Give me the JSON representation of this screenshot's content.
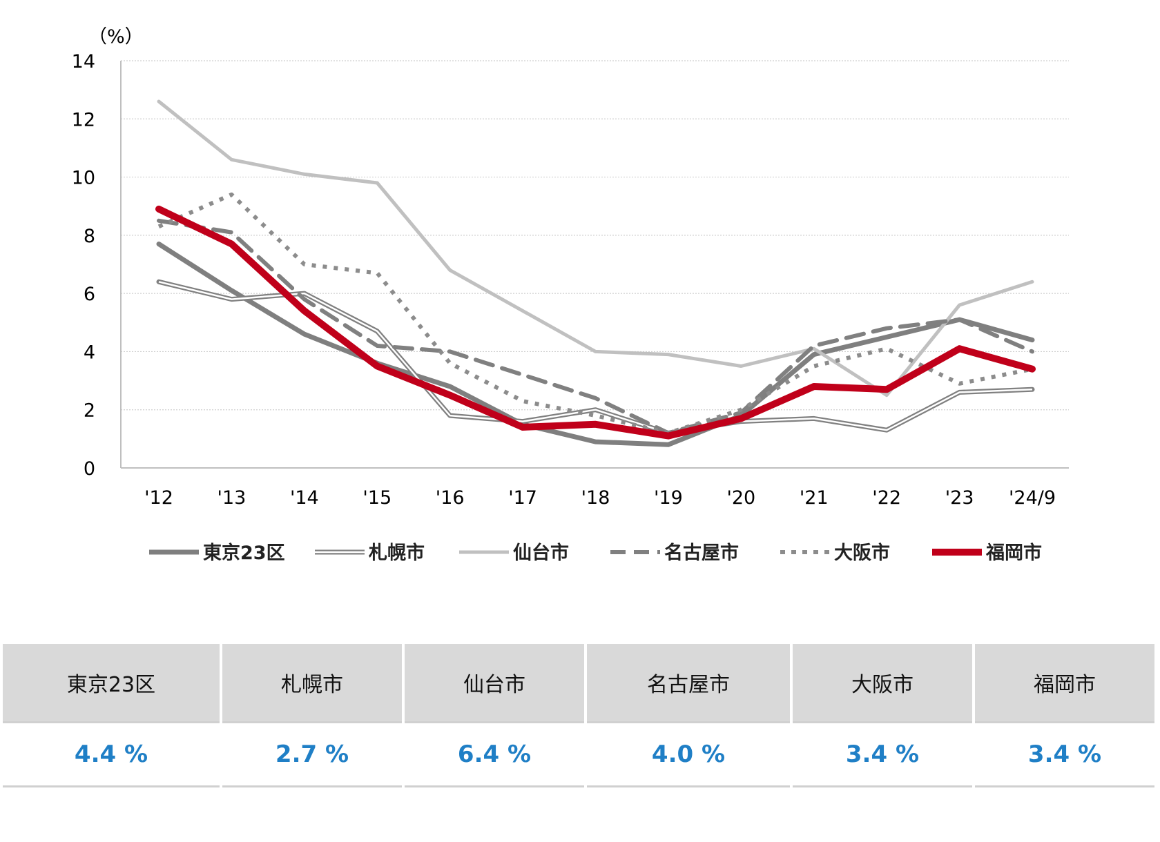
{
  "chart_data": {
    "type": "line",
    "ylabel": "（%）",
    "ylim": [
      0,
      14
    ],
    "yticks": [
      0,
      2,
      4,
      6,
      8,
      10,
      12,
      14
    ],
    "categories": [
      "'12",
      "'13",
      "'14",
      "'15",
      "'16",
      "'17",
      "'18",
      "'19",
      "'20",
      "'21",
      "'22",
      "'23",
      "'24/9"
    ],
    "grid": true,
    "legend_position": "bottom",
    "series": [
      {
        "name": "東京23区",
        "style": "solid-thick",
        "color": "#7f7f7f",
        "values": [
          7.7,
          6.1,
          4.6,
          3.6,
          2.8,
          1.5,
          0.9,
          0.8,
          1.8,
          3.9,
          4.5,
          5.1,
          4.4
        ]
      },
      {
        "name": "札幌市",
        "style": "double",
        "color": "#808080",
        "values": [
          6.4,
          5.8,
          6.0,
          4.7,
          1.8,
          1.6,
          2.0,
          1.2,
          1.6,
          1.7,
          1.3,
          2.6,
          2.7
        ]
      },
      {
        "name": "仙台市",
        "style": "solid",
        "color": "#c0c0c0",
        "values": [
          12.6,
          10.6,
          10.1,
          9.8,
          6.8,
          5.4,
          4.0,
          3.9,
          3.5,
          4.1,
          2.5,
          5.6,
          6.4
        ]
      },
      {
        "name": "名古屋市",
        "style": "dashed",
        "color": "#808080",
        "values": [
          8.5,
          8.1,
          5.8,
          4.2,
          4.0,
          3.2,
          2.4,
          1.2,
          1.9,
          4.2,
          4.8,
          5.1,
          4.0
        ]
      },
      {
        "name": "大阪市",
        "style": "dotted",
        "color": "#8c8c8c",
        "values": [
          8.3,
          9.4,
          7.0,
          6.7,
          3.6,
          2.3,
          1.8,
          1.2,
          2.0,
          3.5,
          4.1,
          2.9,
          3.4
        ]
      },
      {
        "name": "福岡市",
        "style": "solid-red",
        "color": "#c0001a",
        "values": [
          8.9,
          7.7,
          5.4,
          3.5,
          2.5,
          1.4,
          1.5,
          1.1,
          1.7,
          2.8,
          2.7,
          4.1,
          3.4
        ]
      }
    ]
  },
  "table": {
    "headers": [
      "東京23区",
      "札幌市",
      "仙台市",
      "名古屋市",
      "大阪市",
      "福岡市"
    ],
    "values": [
      "4.4 %",
      "2.7 %",
      "6.4 %",
      "4.0 %",
      "3.4 %",
      "3.4 %"
    ]
  }
}
